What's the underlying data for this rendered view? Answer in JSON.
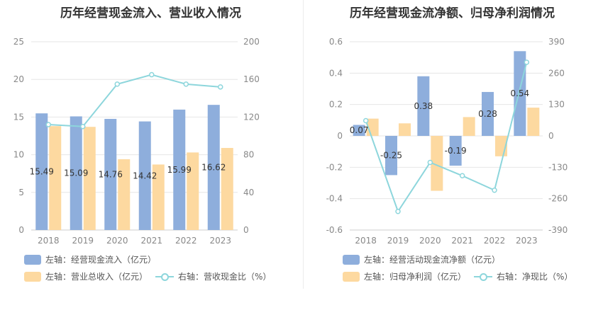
{
  "colors": {
    "bar_primary": "#8eaedc",
    "bar_secondary": "#fdd9a0",
    "line": "#8dd6dc",
    "grid": "#e6e6e6",
    "axis_text": "#888888"
  },
  "left_chart": {
    "title": "历年经营现金流入、营业收入情况"
  },
  "right_chart": {
    "title": "历年经营现金流净额、归母净利润情况"
  },
  "chart_data": [
    {
      "type": "bar",
      "title": "历年经营现金流入、营业收入情况",
      "categories": [
        "2018",
        "2019",
        "2020",
        "2021",
        "2022",
        "2023"
      ],
      "y_left": {
        "ylim": [
          0,
          25
        ],
        "ticks": [
          0,
          5,
          10,
          15,
          20,
          25
        ]
      },
      "y_right": {
        "ylim": [
          0,
          200
        ],
        "ticks": [
          0,
          40,
          80,
          120,
          160,
          200
        ]
      },
      "series": [
        {
          "name": "左轴：经营现金流入（亿元）",
          "type": "bar",
          "axis": "left",
          "values": [
            15.49,
            15.09,
            14.76,
            14.42,
            15.99,
            16.62
          ],
          "labels": [
            "15.49",
            "15.09",
            "14.76",
            "14.42",
            "15.99",
            "16.62"
          ]
        },
        {
          "name": "左轴：营业总收入（亿元）",
          "type": "bar",
          "axis": "left",
          "values": [
            13.8,
            13.7,
            9.4,
            8.7,
            10.3,
            10.9
          ]
        },
        {
          "name": "右轴：营收现金比（%）",
          "type": "line",
          "axis": "right",
          "values": [
            112,
            110,
            155,
            165,
            155,
            152
          ]
        }
      ],
      "grid": true,
      "legend": "bottom"
    },
    {
      "type": "bar",
      "title": "历年经营现金流净额、归母净利润情况",
      "categories": [
        "2018",
        "2019",
        "2020",
        "2021",
        "2022",
        "2023"
      ],
      "y_left": {
        "ylim": [
          -0.6,
          0.6
        ],
        "ticks": [
          -0.6,
          -0.4,
          -0.2,
          0,
          0.2,
          0.4,
          0.6
        ]
      },
      "y_right": {
        "ylim": [
          -390,
          390
        ],
        "ticks": [
          -390,
          -260,
          -130,
          0,
          130,
          260,
          390
        ]
      },
      "series": [
        {
          "name": "左轴：经营活动现金流净额（亿元）",
          "type": "bar",
          "axis": "left",
          "values": [
            0.07,
            -0.25,
            0.38,
            -0.19,
            0.28,
            0.54
          ],
          "labels": [
            "0.07",
            "-0.25",
            "0.38",
            "-0.19",
            "0.28",
            "0.54"
          ]
        },
        {
          "name": "左轴：归母净利润（亿元）",
          "type": "bar",
          "axis": "left",
          "values": [
            0.11,
            0.08,
            -0.35,
            0.12,
            -0.13,
            0.18
          ]
        },
        {
          "name": "右轴：净现比（%）",
          "type": "line",
          "axis": "right",
          "values": [
            63,
            -313,
            -110,
            -165,
            -225,
            305
          ]
        }
      ],
      "grid": true,
      "legend": "bottom"
    }
  ]
}
